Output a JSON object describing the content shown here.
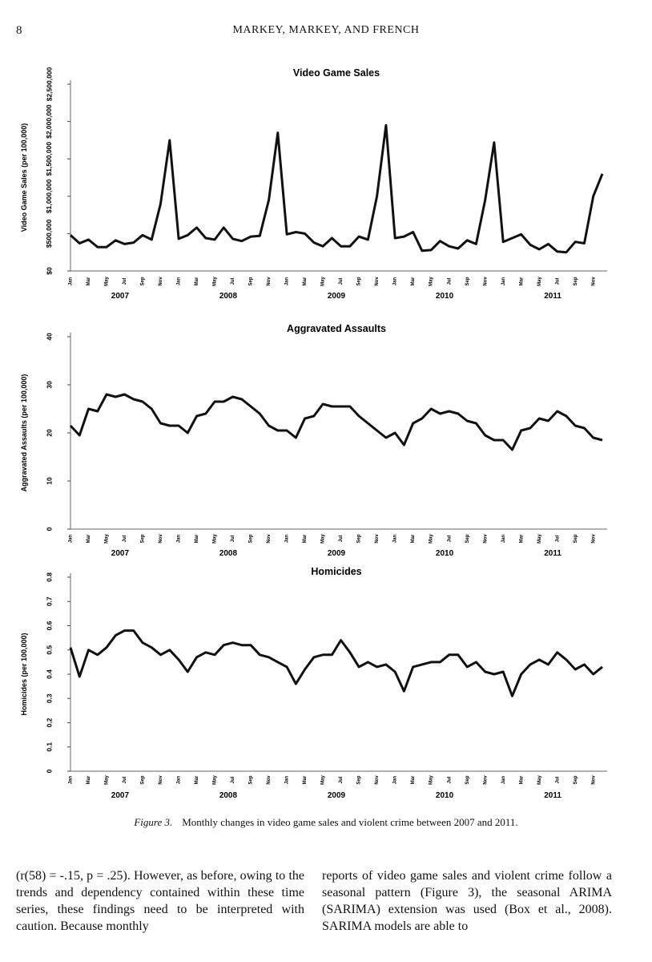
{
  "header": {
    "page_number": "8",
    "running_head": "MARKEY, MARKEY, AND FRENCH"
  },
  "chart_data": [
    {
      "type": "line",
      "title": "Video Game Sales",
      "ylabel": "Video Game Sales (per 100,000)",
      "ylim": [
        0,
        2500000
      ],
      "yticks": [
        0,
        500000,
        1000000,
        1500000,
        2000000,
        2500000
      ],
      "ytick_labels": [
        "$0",
        "$500,000",
        "$1,000,000",
        "$1,500,000",
        "$2,000,000",
        "$2,500,000"
      ],
      "month_labels": [
        "Jan",
        "Mar",
        "May",
        "Jul",
        "Sep",
        "Nov"
      ],
      "year_labels": [
        "2007",
        "2008",
        "2009",
        "2010",
        "2011"
      ],
      "grid": false,
      "legend": "none",
      "series": [
        {
          "values": [
            480000,
            370000,
            420000,
            320000,
            320000,
            410000,
            360000,
            380000,
            480000,
            420000,
            900000,
            1750000,
            430000,
            480000,
            580000,
            440000,
            420000,
            580000,
            430000,
            400000,
            460000,
            470000,
            950000,
            1850000,
            490000,
            520000,
            500000,
            380000,
            330000,
            440000,
            330000,
            330000,
            460000,
            420000,
            1000000,
            1950000,
            440000,
            460000,
            520000,
            270000,
            280000,
            400000,
            330000,
            300000,
            410000,
            360000,
            950000,
            1720000,
            390000,
            440000,
            490000,
            350000,
            290000,
            360000,
            260000,
            250000,
            390000,
            370000,
            1000000,
            1300000
          ]
        }
      ]
    },
    {
      "type": "line",
      "title": "Aggravated Assaults",
      "ylabel": "Aggravated Assaults (per 100,000)",
      "ylim": [
        0,
        40
      ],
      "yticks": [
        0,
        10,
        20,
        30,
        40
      ],
      "ytick_labels": [
        "0",
        "10",
        "20",
        "30",
        "40"
      ],
      "month_labels": [
        "Jan",
        "Mar",
        "May",
        "Jul",
        "Sep",
        "Nov"
      ],
      "year_labels": [
        "2007",
        "2008",
        "2009",
        "2010",
        "2011"
      ],
      "grid": false,
      "legend": "none",
      "series": [
        {
          "values": [
            21.5,
            19.5,
            25.0,
            24.5,
            28.0,
            27.5,
            28.0,
            27.0,
            26.5,
            25.0,
            22.0,
            21.5,
            21.5,
            20.0,
            23.5,
            24.0,
            26.5,
            26.5,
            27.5,
            27.0,
            25.5,
            24.0,
            21.5,
            20.5,
            20.5,
            19.0,
            23.0,
            23.5,
            26.0,
            25.5,
            25.5,
            25.5,
            23.5,
            22.0,
            20.5,
            19.0,
            20.0,
            17.5,
            22.0,
            23.0,
            25.0,
            24.0,
            24.5,
            24.0,
            22.5,
            22.0,
            19.5,
            18.5,
            18.5,
            16.5,
            20.5,
            21.0,
            23.0,
            22.5,
            24.5,
            23.5,
            21.5,
            21.0,
            19.0,
            18.5
          ]
        }
      ]
    },
    {
      "type": "line",
      "title": "Homicides",
      "ylabel": "Homicides (per 100,000)",
      "ylim": [
        0,
        0.8
      ],
      "yticks": [
        0,
        0.1,
        0.2,
        0.3,
        0.4,
        0.5,
        0.6,
        0.7,
        0.8
      ],
      "ytick_labels": [
        "0",
        "0.1",
        "0.2",
        "0.3",
        "0.4",
        "0.5",
        "0.6",
        "0.7",
        "0.8"
      ],
      "month_labels": [
        "Jan",
        "Mar",
        "May",
        "Jul",
        "Sep",
        "Nov"
      ],
      "year_labels": [
        "2007",
        "2008",
        "2009",
        "2010",
        "2011"
      ],
      "grid": false,
      "legend": "none",
      "series": [
        {
          "values": [
            0.51,
            0.39,
            0.5,
            0.48,
            0.51,
            0.56,
            0.58,
            0.58,
            0.53,
            0.51,
            0.48,
            0.5,
            0.46,
            0.41,
            0.47,
            0.49,
            0.48,
            0.52,
            0.53,
            0.52,
            0.52,
            0.48,
            0.47,
            0.45,
            0.43,
            0.36,
            0.42,
            0.47,
            0.48,
            0.48,
            0.54,
            0.49,
            0.43,
            0.45,
            0.43,
            0.44,
            0.41,
            0.33,
            0.43,
            0.44,
            0.45,
            0.45,
            0.48,
            0.48,
            0.43,
            0.45,
            0.41,
            0.4,
            0.41,
            0.31,
            0.4,
            0.44,
            0.46,
            0.44,
            0.49,
            0.46,
            0.42,
            0.44,
            0.4,
            0.43
          ]
        }
      ]
    }
  ],
  "caption": {
    "label": "Figure 3.",
    "text": "Monthly changes in video game sales and violent crime between 2007 and 2011."
  },
  "body": {
    "left": "(r(58) = -.15, p = .25). However, as before, owing to the trends and dependency contained within these time series, these findings need to be interpreted with caution. Because monthly",
    "right": "reports of video game sales and violent crime follow a seasonal pattern (Figure 3), the seasonal ARIMA (SARIMA) extension was used (Box et al., 2008). SARIMA models are able to"
  }
}
